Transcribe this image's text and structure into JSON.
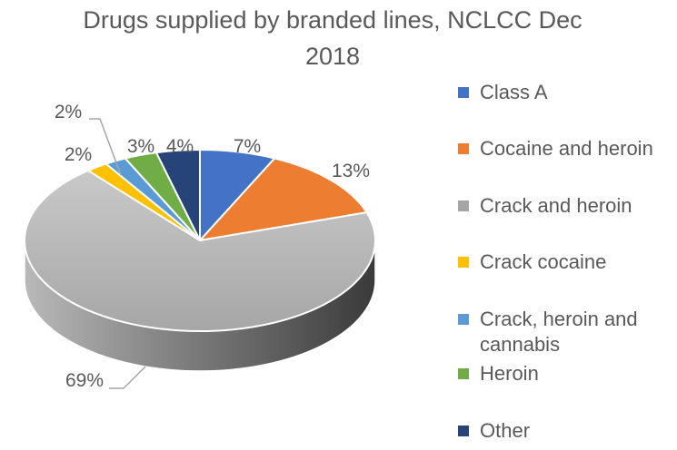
{
  "chart_data": {
    "type": "pie",
    "title_lines": [
      "Drugs supplied by branded lines, NCLCC Dec",
      "2018"
    ],
    "categories": [
      "Class A",
      "Cocaine and heroin",
      "Crack and heroin",
      "Crack cocaine",
      "Crack, heroin and cannabis",
      "Heroin",
      "Other"
    ],
    "values": [
      7,
      13,
      69,
      2,
      2,
      3,
      4
    ],
    "labels": [
      "7%",
      "13%",
      "69%",
      "2%",
      "2%",
      "3%",
      "4%"
    ],
    "colors": [
      "#4472C4",
      "#ED7D31",
      "#A5A5A5",
      "#FFC000",
      "#5B9BD5",
      "#70AD47",
      "#264478"
    ],
    "legend_position": "right",
    "style": "3d-pie"
  }
}
